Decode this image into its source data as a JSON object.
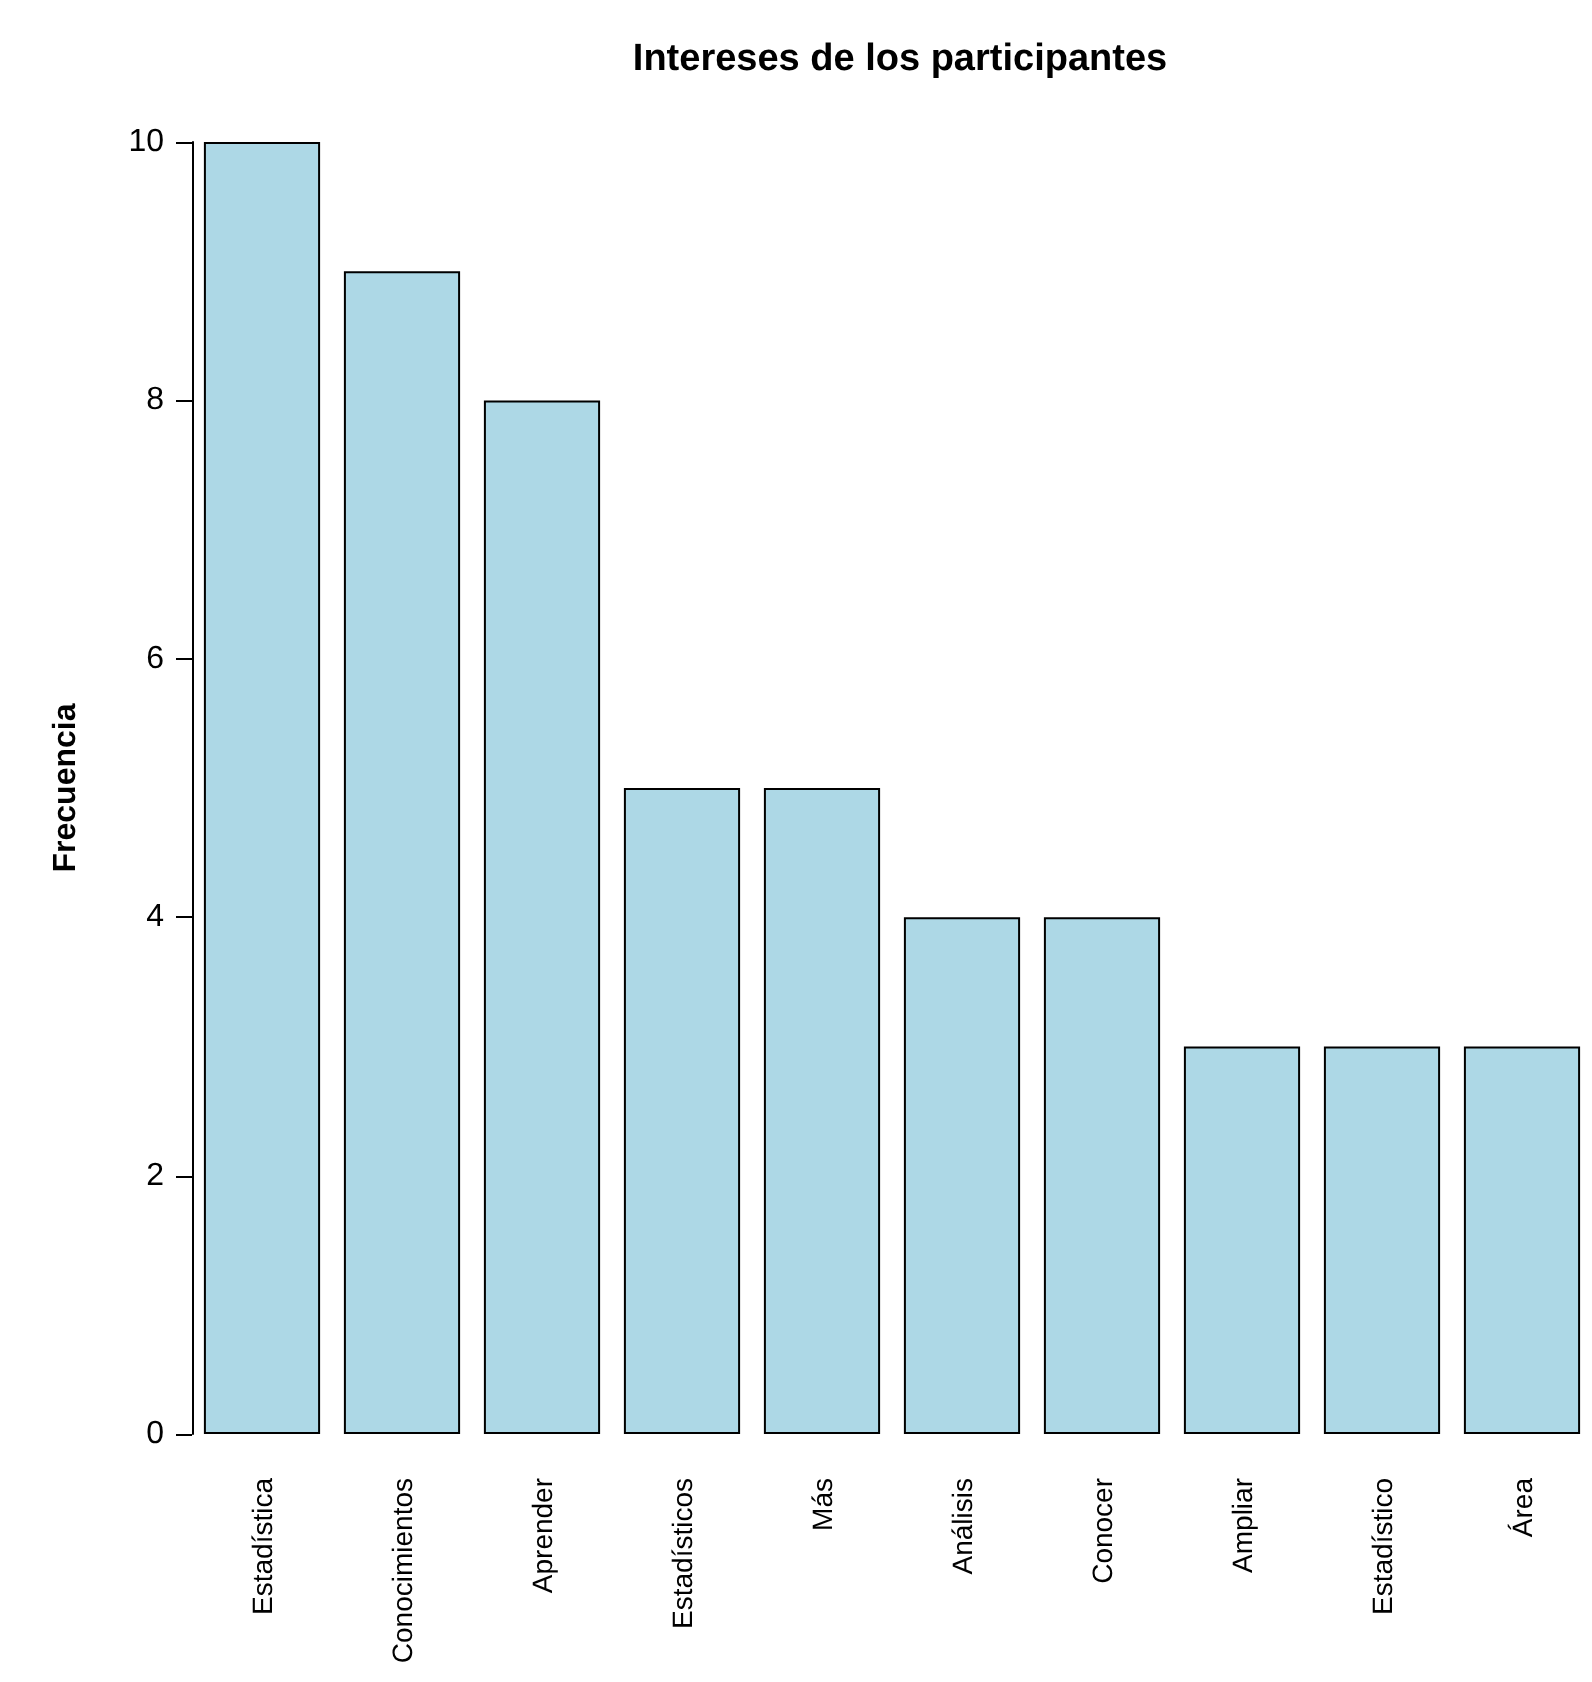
{
  "chart_data": {
    "type": "bar",
    "title": "Intereses de los participantes",
    "ylabel": "Frecuencia",
    "categories": [
      "Estadística",
      "Conocimientos",
      "Aprender",
      "Estadísticos",
      "Más",
      "Análisis",
      "Conocer",
      "Ampliar",
      "Estadístico",
      "Área"
    ],
    "values": [
      10,
      9,
      8,
      5,
      5,
      4,
      4,
      3,
      3,
      3
    ],
    "color": "#add8e6",
    "ylim": [
      0,
      10
    ],
    "yticks": [
      0,
      2,
      4,
      6,
      8,
      10
    ],
    "grid": false
  }
}
